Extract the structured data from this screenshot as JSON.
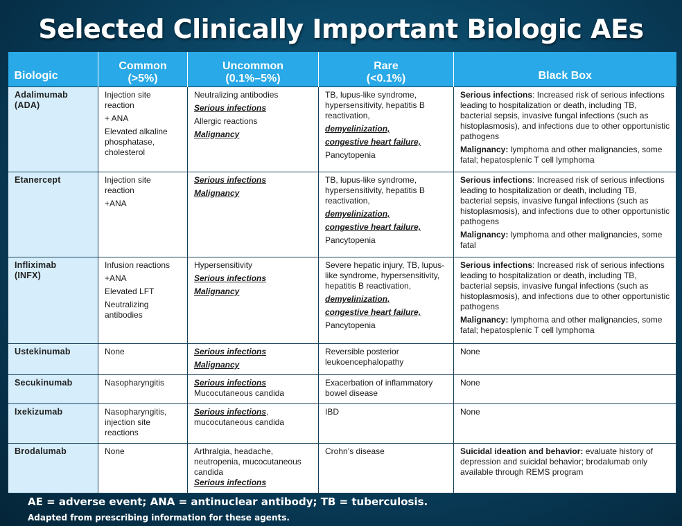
{
  "title": "Selected Clinically Important  Biologic AEs",
  "headers": {
    "biologic": "Biologic",
    "common_1": "Common",
    "common_2": "(>5%)",
    "uncommon_1": "Uncommon",
    "uncommon_2": "(0.1%–5%)",
    "rare_1": "Rare",
    "rare_2": "(<0.1%)",
    "blackbox": "Black Box"
  },
  "rows": [
    {
      "name_1": "Adalimumab",
      "name_2": "(ADA)",
      "common": [
        "Injection site reaction",
        "+ ANA",
        "Elevated alkaline phosphatase, cholesterol"
      ],
      "uncommon": [
        "Neutralizing antibodies",
        "Serious infections",
        "Allergic reactions",
        "Malignancy"
      ],
      "rare": [
        "TB, lupus-like syndrome, hypersensitivity, hepatitis B reactivation,",
        "demyelinization,",
        "congestive heart failure,",
        "Pancytopenia"
      ],
      "bb_si_label": "Serious infections",
      "bb_si_text": ": Increased risk of serious infections leading to hospitalization or death, including TB, bacterial sepsis, invasive fungal infections  (such as histoplasmosis), and infections due to other opportunistic pathogens",
      "bb_mal_label": "Malignancy:",
      "bb_mal_text": " lymphoma and other malignancies, some fatal; hepatosplenic T cell lymphoma"
    },
    {
      "name_1": "Etanercept",
      "common": [
        "Injection site reaction",
        "+ANA"
      ],
      "uncommon": [
        "Serious infections",
        "Malignancy"
      ],
      "rare": [
        "TB, lupus-like syndrome, hypersensitivity, hepatitis B reactivation,",
        "demyelinization,",
        "congestive heart failure,",
        "Pancytopenia"
      ],
      "bb_si_label": "Serious infections",
      "bb_si_text": ": Increased risk of serious infections leading to hospitalization or death, including TB, bacterial sepsis, invasive fungal infections  (such as histoplasmosis), and infections due to other opportunistic pathogens",
      "bb_mal_label": "Malignancy:",
      "bb_mal_text": " lymphoma and other malignancies, some fatal"
    },
    {
      "name_1": "Infliximab",
      "name_2": "(INFX)",
      "common": [
        "Infusion reactions",
        "+ANA",
        "Elevated LFT",
        "Neutralizing antibodies"
      ],
      "uncommon": [
        "Hypersensitivity",
        "Serious infections",
        "Malignancy"
      ],
      "rare": [
        "Severe hepatic injury, TB, lupus-like syndrome, hypersensitivity, hepatitis B reactivation,",
        "demyelinization,",
        "congestive heart failure,",
        "Pancytopenia"
      ],
      "bb_si_label": "Serious infections",
      "bb_si_text": ": Increased risk of serious infections leading to hospitalization or death, including TB, bacterial sepsis, invasive fungal infections  (such as histoplasmosis), and infections due to other opportunistic pathogens",
      "bb_mal_label": "Malignancy:",
      "bb_mal_text": " lymphoma and other malignancies, some fatal; hepatosplenic T cell lymphoma"
    },
    {
      "name_1": "Ustekinumab",
      "common": "None",
      "uncommon": [
        "Serious infections",
        "Malignancy"
      ],
      "rare": "Reversible posterior leukoencephalopathy",
      "blackbox": "None"
    },
    {
      "name_1": "Secukinumab",
      "common": "Nasopharyngitis",
      "uncommon_si": "Serious infections",
      "uncommon_rest": "Mucocutaneous candida",
      "rare": "Exacerbation of inflammatory bowel disease",
      "blackbox": "None"
    },
    {
      "name_1": "Ixekizumab",
      "common": "Nasopharyngitis, injection site reactions",
      "uncommon_si": "Serious infections",
      "uncommon_rest": ", mucocutaneous candida",
      "rare": "IBD",
      "blackbox": "None"
    },
    {
      "name_1": "Brodalumab",
      "common": "None",
      "uncommon_rest": "Arthralgia, headache, neutropenia, mucocutaneous candida",
      "uncommon_si": "Serious infections",
      "rare": "Crohn’s disease",
      "bb_label": "Suicidal ideation and behavior:",
      "bb_text": " evaluate history of depression and suicidal behavior; brodalumab only available through REMS program"
    }
  ],
  "footnote": "AE = adverse event; ANA =  antinuclear antibody; TB = tuberculosis.",
  "source": "Adapted from prescribing information for these agents."
}
